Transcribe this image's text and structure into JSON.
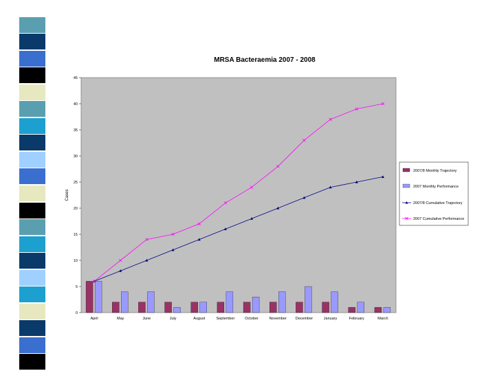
{
  "colors": {
    "monthly_trajectory": "#993366",
    "monthly_performance": "#9999ff",
    "cumulative_trajectory": "#000080",
    "cumulative_performance": "#ff00ff",
    "plot_background": "#c0c0c0"
  },
  "decor_stripe_colors": [
    "#ffffff",
    "#5a9fb0",
    "#0a3a6a",
    "#3a6fd0",
    "#000000",
    "#e8e8c0",
    "#5a9fb0",
    "#1ca0d0",
    "#0a3a6a",
    "#a0d0ff",
    "#3a6fd0",
    "#e8e8c0",
    "#000000",
    "#5a9fb0",
    "#1ca0d0",
    "#0a3a6a",
    "#a0d0ff",
    "#1ca0d0",
    "#e8e8c0",
    "#0a3a6a",
    "#3a6fd0",
    "#000000"
  ],
  "chart_data": {
    "type": "bar+line",
    "title": "MRSA Bacteraemia 2007 - 2008",
    "xlabel": "",
    "ylabel": "Cases",
    "ylim": [
      0,
      45
    ],
    "yticks": [
      0,
      5,
      10,
      15,
      20,
      25,
      30,
      35,
      40,
      45
    ],
    "grid": false,
    "legend_position": "right",
    "categories": [
      "April",
      "May",
      "June",
      "July",
      "August",
      "September",
      "October",
      "November",
      "December",
      "January",
      "February",
      "March"
    ],
    "series": [
      {
        "name": "2007/8 Monthly Trajectory",
        "kind": "bar",
        "values": [
          6,
          2,
          2,
          2,
          2,
          2,
          2,
          2,
          2,
          2,
          1,
          1
        ]
      },
      {
        "name": "2007 Monthly Performance",
        "kind": "bar",
        "values": [
          6,
          4,
          4,
          1,
          2,
          4,
          3,
          4,
          5,
          4,
          2,
          1
        ]
      },
      {
        "name": "2007/8 Cumulative Trajectory",
        "kind": "line",
        "marker": "triangle",
        "values": [
          6,
          8,
          10,
          12,
          14,
          16,
          18,
          20,
          22,
          24,
          25,
          26
        ]
      },
      {
        "name": "2007 Cumulative Performance",
        "kind": "line",
        "marker": "x",
        "values": [
          6,
          10,
          14,
          15,
          17,
          21,
          24,
          28,
          33,
          37,
          39,
          40
        ]
      }
    ]
  }
}
